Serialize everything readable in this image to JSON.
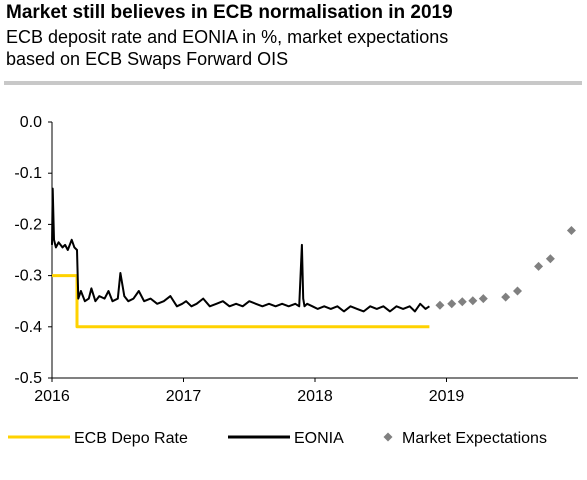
{
  "header": {
    "title": "Market still believes in ECB normalisation in 2019",
    "subtitle_line1": "ECB deposit rate and EONIA in %, market expectations",
    "subtitle_line2": "based on ECB Swaps Forward OIS"
  },
  "colors": {
    "depo": "#ffd200",
    "eonia": "#000000",
    "expectations": "#808080"
  },
  "chart_data": {
    "type": "line",
    "xlim": [
      2016.0,
      2020.0
    ],
    "ylim": [
      -0.5,
      0.0
    ],
    "x_ticks": [
      2016,
      2017,
      2018,
      2019
    ],
    "x_tick_labels": [
      "2016",
      "2017",
      "2018",
      "2019"
    ],
    "y_ticks": [
      0.0,
      -0.1,
      -0.2,
      -0.3,
      -0.4,
      -0.5
    ],
    "y_tick_labels": [
      "0.0",
      "-0.1",
      "-0.2",
      "-0.3",
      "-0.4",
      "-0.5"
    ],
    "grid": false,
    "legend_position": "bottom",
    "series": [
      {
        "name": "ECB Depo Rate",
        "style": "line",
        "x": [
          2016.0,
          2016.19,
          2016.19,
          2018.87
        ],
        "y": [
          -0.3,
          -0.3,
          -0.4,
          -0.4
        ]
      },
      {
        "name": "EONIA",
        "style": "line",
        "x": [
          2016.0,
          2016.005,
          2016.015,
          2016.03,
          2016.05,
          2016.08,
          2016.1,
          2016.12,
          2016.15,
          2016.17,
          2016.19,
          2016.2,
          2016.22,
          2016.25,
          2016.28,
          2016.3,
          2016.33,
          2016.36,
          2016.4,
          2016.43,
          2016.46,
          2016.5,
          2016.52,
          2016.55,
          2016.58,
          2016.62,
          2016.66,
          2016.7,
          2016.75,
          2016.8,
          2016.85,
          2016.9,
          2016.95,
          2016.99,
          2017.02,
          2017.06,
          2017.1,
          2017.15,
          2017.2,
          2017.25,
          2017.3,
          2017.35,
          2017.4,
          2017.45,
          2017.5,
          2017.55,
          2017.6,
          2017.65,
          2017.7,
          2017.75,
          2017.8,
          2017.85,
          2017.88,
          2017.9,
          2017.91,
          2017.92,
          2017.94,
          2017.98,
          2018.02,
          2018.07,
          2018.12,
          2018.17,
          2018.22,
          2018.27,
          2018.32,
          2018.37,
          2018.42,
          2018.47,
          2018.52,
          2018.57,
          2018.62,
          2018.67,
          2018.72,
          2018.76,
          2018.8,
          2018.84,
          2018.87
        ],
        "y": [
          -0.24,
          -0.13,
          -0.23,
          -0.245,
          -0.235,
          -0.245,
          -0.24,
          -0.25,
          -0.23,
          -0.245,
          -0.25,
          -0.345,
          -0.33,
          -0.35,
          -0.345,
          -0.325,
          -0.35,
          -0.34,
          -0.345,
          -0.33,
          -0.35,
          -0.345,
          -0.295,
          -0.34,
          -0.35,
          -0.345,
          -0.33,
          -0.35,
          -0.345,
          -0.355,
          -0.35,
          -0.34,
          -0.36,
          -0.355,
          -0.35,
          -0.36,
          -0.355,
          -0.345,
          -0.36,
          -0.355,
          -0.35,
          -0.36,
          -0.355,
          -0.36,
          -0.35,
          -0.355,
          -0.36,
          -0.355,
          -0.36,
          -0.355,
          -0.36,
          -0.355,
          -0.36,
          -0.24,
          -0.345,
          -0.36,
          -0.355,
          -0.36,
          -0.365,
          -0.36,
          -0.365,
          -0.36,
          -0.37,
          -0.36,
          -0.365,
          -0.37,
          -0.36,
          -0.365,
          -0.36,
          -0.37,
          -0.36,
          -0.365,
          -0.36,
          -0.37,
          -0.355,
          -0.365,
          -0.36
        ]
      },
      {
        "name": "Market Expectations",
        "style": "markers",
        "x": [
          2018.95,
          2019.04,
          2019.12,
          2019.2,
          2019.28,
          2019.45,
          2019.54,
          2019.7,
          2019.79,
          2019.95
        ],
        "y": [
          -0.358,
          -0.355,
          -0.351,
          -0.349,
          -0.345,
          -0.342,
          -0.33,
          -0.282,
          -0.267,
          -0.212
        ]
      }
    ]
  }
}
